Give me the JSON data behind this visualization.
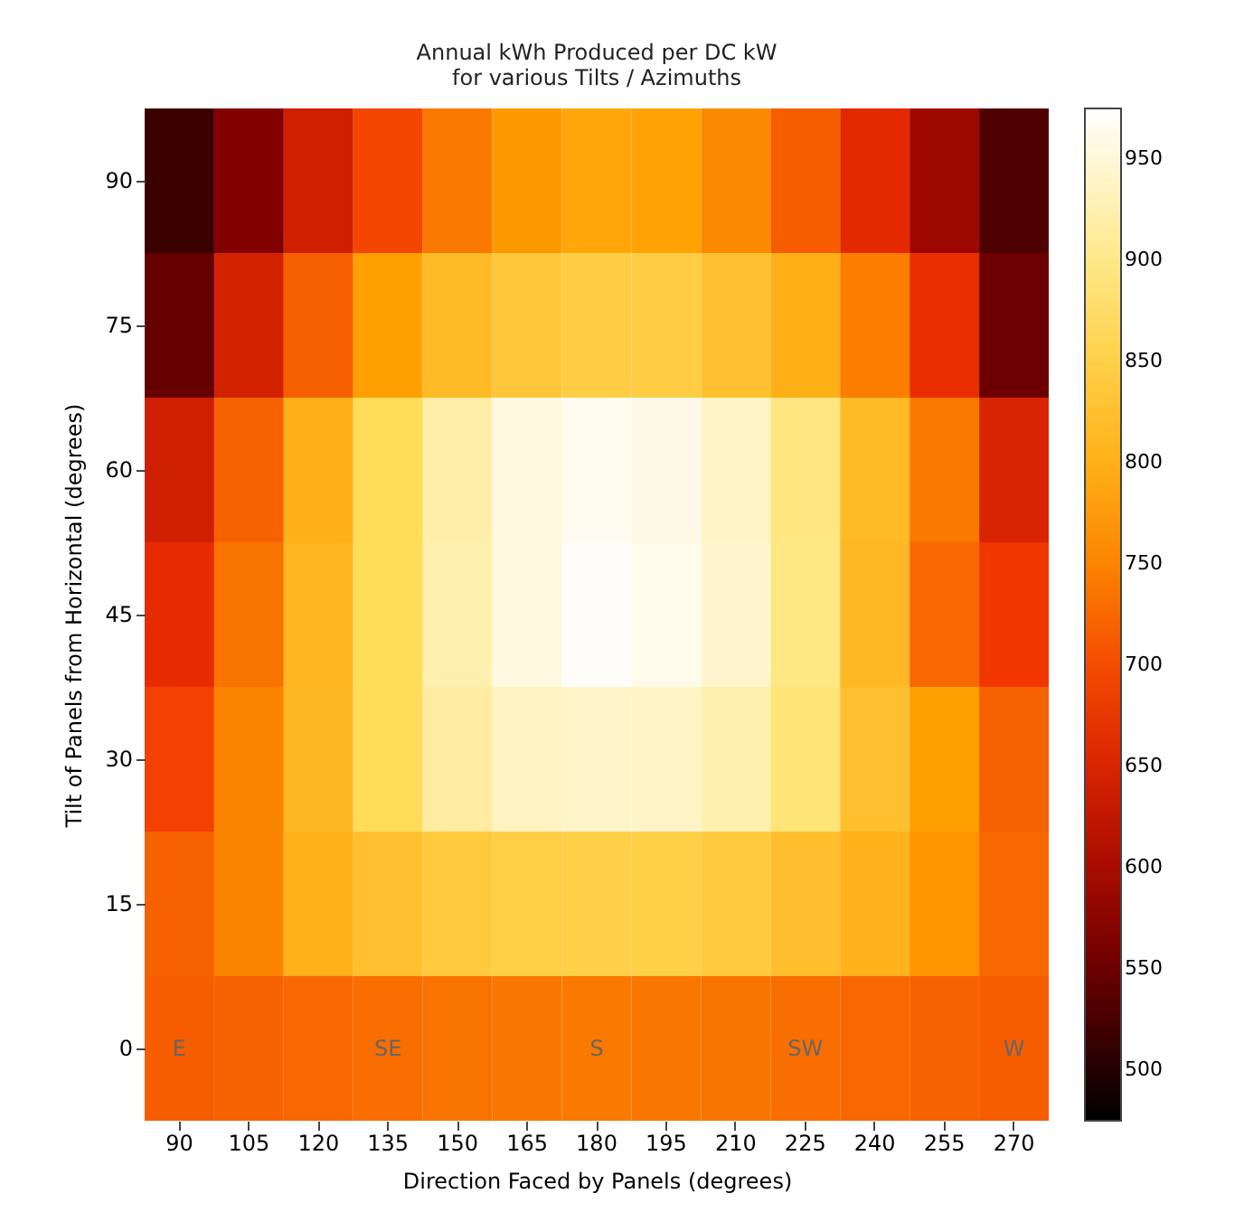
{
  "chart_data": {
    "type": "heatmap",
    "title": "Annual kWh Produced per DC kW\nfor various Tilts / Azimuths",
    "xlabel": "Direction Faced by Panels (degrees)",
    "ylabel": "Tilt of Panels from Horizontal (degrees)",
    "categories": [
      "90",
      "105",
      "120",
      "135",
      "150",
      "165",
      "180",
      "195",
      "210",
      "225",
      "240",
      "255",
      "270"
    ],
    "y_categories": [
      "90",
      "75",
      "60",
      "45",
      "30",
      "15",
      "0"
    ],
    "cells": [
      [
        515,
        565,
        640,
        695,
        740,
        770,
        785,
        780,
        755,
        715,
        660,
        590,
        530
      ],
      [
        545,
        645,
        717,
        775,
        815,
        835,
        845,
        845,
        825,
        798,
        745,
        670,
        550
      ],
      [
        640,
        720,
        800,
        868,
        920,
        955,
        965,
        960,
        940,
        895,
        815,
        740,
        650
      ],
      [
        665,
        735,
        808,
        870,
        925,
        955,
        970,
        962,
        945,
        897,
        813,
        725,
        680
      ],
      [
        690,
        750,
        810,
        870,
        915,
        935,
        942,
        940,
        925,
        890,
        825,
        775,
        720
      ],
      [
        720,
        750,
        802,
        825,
        840,
        847,
        849,
        848,
        840,
        822,
        803,
        765,
        725
      ],
      [
        715,
        720,
        725,
        730,
        735,
        738,
        740,
        738,
        735,
        730,
        725,
        720,
        715
      ]
    ],
    "clim": [
      475,
      975
    ],
    "cticks": [
      500,
      550,
      600,
      650,
      700,
      750,
      800,
      850,
      900,
      950
    ],
    "colors": [
      "#000000",
      "#900000",
      "#f03000",
      "#ffa000",
      "#ffe060",
      "#ffffff"
    ],
    "annotations": [
      "E",
      "SE",
      "S",
      "SW",
      "W"
    ]
  }
}
